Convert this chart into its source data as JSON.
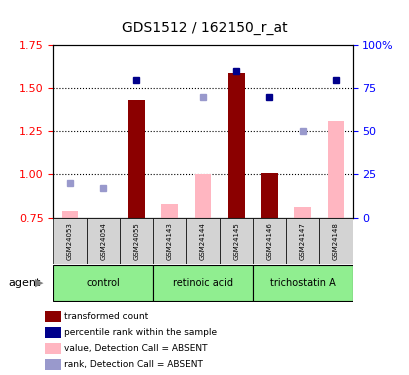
{
  "title": "GDS1512 / 162150_r_at",
  "samples": [
    "GSM24053",
    "GSM24054",
    "GSM24055",
    "GSM24143",
    "GSM24144",
    "GSM24145",
    "GSM24146",
    "GSM24147",
    "GSM24148"
  ],
  "transformed_count": [
    null,
    null,
    1.43,
    null,
    null,
    1.59,
    1.01,
    null,
    null
  ],
  "transformed_count_absent": [
    0.79,
    0.74,
    null,
    0.83,
    1.0,
    null,
    null,
    0.81,
    1.31
  ],
  "percentile_rank": [
    null,
    null,
    80.0,
    null,
    null,
    85.0,
    70.0,
    null,
    80.0
  ],
  "percentile_rank_absent": [
    20.0,
    17.0,
    null,
    null,
    70.0,
    null,
    null,
    50.0,
    null
  ],
  "ylim_left": [
    0.75,
    1.75
  ],
  "ylim_right": [
    0,
    100
  ],
  "yticks_left": [
    0.75,
    1.0,
    1.25,
    1.5,
    1.75
  ],
  "yticks_right": [
    0,
    25,
    50,
    75,
    100
  ],
  "ytick_labels_right": [
    "0",
    "25",
    "50",
    "75",
    "100%"
  ],
  "bar_color_present": "#8B0000",
  "bar_color_absent": "#FFB6C1",
  "dot_color_present": "#00008B",
  "dot_color_absent": "#9999CC",
  "legend_items": [
    {
      "color": "#8B0000",
      "label": "transformed count"
    },
    {
      "color": "#00008B",
      "label": "percentile rank within the sample"
    },
    {
      "color": "#FFB6C1",
      "label": "value, Detection Call = ABSENT"
    },
    {
      "color": "#9999CC",
      "label": "rank, Detection Call = ABSENT"
    }
  ],
  "group_positions": [
    {
      "start": 0,
      "end": 2,
      "label": "control"
    },
    {
      "start": 3,
      "end": 5,
      "label": "retinoic acid"
    },
    {
      "start": 6,
      "end": 8,
      "label": "trichostatin A"
    }
  ],
  "agent_label": "agent",
  "header_bg": "#D3D3D3",
  "group_bg": "#90EE90"
}
